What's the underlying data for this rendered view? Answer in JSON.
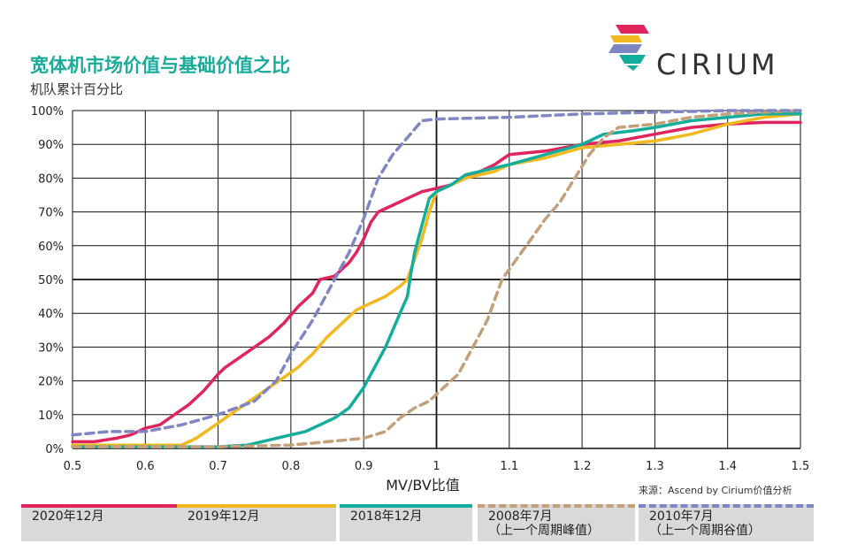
{
  "header": {
    "title": "宽体机市场价值与基础价值之比",
    "subtitle": "机队累计百分比",
    "brand": "CIRIUM"
  },
  "source": "来源：Ascend by Cirium价值分析",
  "legend": [
    {
      "label": "2020年12月",
      "sub": "",
      "color": "#e0245e",
      "dashed": false
    },
    {
      "label": "2019年12月",
      "sub": "",
      "color": "#f2b81f",
      "dashed": false
    },
    {
      "label": "2018年12月",
      "sub": "",
      "color": "#14ad9c",
      "dashed": false
    },
    {
      "label": "2008年7月",
      "sub": "（上一个周期峰值）",
      "color": "#c4a07a",
      "dashed": true
    },
    {
      "label": "2010年7月",
      "sub": "（上一个周期谷值）",
      "color": "#7f86c4",
      "dashed": true
    }
  ],
  "chart_data": {
    "type": "line",
    "title": "宽体机市场价值与基础价值之比",
    "subtitle": "机队累计百分比",
    "xlabel": "MV/BV比值",
    "ylabel": "",
    "xlim": [
      0.5,
      1.5
    ],
    "ylim": [
      0,
      100
    ],
    "xticks": [
      "0.5",
      "0.6",
      "0.7",
      "0.8",
      "0.9",
      "1",
      "1.1",
      "1.2",
      "1.3",
      "1.4",
      "1.5"
    ],
    "yticks": [
      "0%",
      "10%",
      "20%",
      "30%",
      "40%",
      "50%",
      "60%",
      "70%",
      "80%",
      "90%",
      "100%"
    ],
    "grid": true,
    "series": [
      {
        "name": "2020年12月",
        "color": "#e0245e",
        "dashed": false,
        "points": [
          [
            0.5,
            2
          ],
          [
            0.53,
            2
          ],
          [
            0.56,
            3
          ],
          [
            0.58,
            4
          ],
          [
            0.6,
            6
          ],
          [
            0.62,
            7
          ],
          [
            0.64,
            10
          ],
          [
            0.66,
            13
          ],
          [
            0.68,
            17
          ],
          [
            0.7,
            22
          ],
          [
            0.71,
            24
          ],
          [
            0.73,
            27
          ],
          [
            0.75,
            30
          ],
          [
            0.77,
            33
          ],
          [
            0.79,
            37
          ],
          [
            0.81,
            42
          ],
          [
            0.83,
            46
          ],
          [
            0.84,
            50
          ],
          [
            0.86,
            51
          ],
          [
            0.87,
            53
          ],
          [
            0.88,
            55
          ],
          [
            0.89,
            58
          ],
          [
            0.9,
            62
          ],
          [
            0.91,
            67
          ],
          [
            0.92,
            70
          ],
          [
            0.94,
            72
          ],
          [
            0.96,
            74
          ],
          [
            0.98,
            76
          ],
          [
            1.0,
            77
          ],
          [
            1.02,
            78
          ],
          [
            1.04,
            80
          ],
          [
            1.06,
            82
          ],
          [
            1.08,
            84
          ],
          [
            1.1,
            87
          ],
          [
            1.15,
            88
          ],
          [
            1.2,
            90
          ],
          [
            1.25,
            91
          ],
          [
            1.3,
            93
          ],
          [
            1.35,
            95
          ],
          [
            1.4,
            96
          ],
          [
            1.45,
            96.5
          ],
          [
            1.5,
            96.5
          ]
        ]
      },
      {
        "name": "2019年12月",
        "color": "#f2b81f",
        "dashed": false,
        "points": [
          [
            0.5,
            1
          ],
          [
            0.6,
            1
          ],
          [
            0.65,
            1
          ],
          [
            0.67,
            3
          ],
          [
            0.69,
            6
          ],
          [
            0.71,
            9
          ],
          [
            0.73,
            12
          ],
          [
            0.75,
            15
          ],
          [
            0.77,
            18
          ],
          [
            0.79,
            21
          ],
          [
            0.81,
            24
          ],
          [
            0.83,
            28
          ],
          [
            0.85,
            33
          ],
          [
            0.87,
            37
          ],
          [
            0.89,
            41
          ],
          [
            0.91,
            43
          ],
          [
            0.93,
            45
          ],
          [
            0.95,
            48
          ],
          [
            0.96,
            50
          ],
          [
            0.97,
            56
          ],
          [
            0.98,
            62
          ],
          [
            0.99,
            70
          ],
          [
            1.0,
            76
          ],
          [
            1.02,
            78
          ],
          [
            1.04,
            80
          ],
          [
            1.06,
            81
          ],
          [
            1.08,
            82
          ],
          [
            1.1,
            84
          ],
          [
            1.15,
            86
          ],
          [
            1.2,
            89
          ],
          [
            1.25,
            90
          ],
          [
            1.3,
            91
          ],
          [
            1.35,
            93
          ],
          [
            1.4,
            96
          ],
          [
            1.45,
            98
          ],
          [
            1.5,
            99
          ]
        ]
      },
      {
        "name": "2018年12月",
        "color": "#14ad9c",
        "dashed": false,
        "points": [
          [
            0.5,
            0.5
          ],
          [
            0.6,
            0.5
          ],
          [
            0.7,
            0.5
          ],
          [
            0.74,
            1
          ],
          [
            0.76,
            2
          ],
          [
            0.78,
            3
          ],
          [
            0.8,
            4
          ],
          [
            0.82,
            5
          ],
          [
            0.84,
            7
          ],
          [
            0.86,
            9
          ],
          [
            0.88,
            12
          ],
          [
            0.9,
            18
          ],
          [
            0.91,
            22
          ],
          [
            0.93,
            30
          ],
          [
            0.94,
            35
          ],
          [
            0.95,
            40
          ],
          [
            0.96,
            45
          ],
          [
            0.965,
            52
          ],
          [
            0.97,
            58
          ],
          [
            0.98,
            66
          ],
          [
            0.99,
            74
          ],
          [
            1.0,
            76
          ],
          [
            1.02,
            78
          ],
          [
            1.04,
            81
          ],
          [
            1.06,
            82
          ],
          [
            1.08,
            83
          ],
          [
            1.1,
            84
          ],
          [
            1.15,
            87
          ],
          [
            1.2,
            90
          ],
          [
            1.23,
            93
          ],
          [
            1.27,
            94
          ],
          [
            1.3,
            95
          ],
          [
            1.35,
            97
          ],
          [
            1.4,
            98
          ],
          [
            1.45,
            99
          ],
          [
            1.5,
            99
          ]
        ]
      },
      {
        "name": "2008年7月（上一个周期峰值）",
        "color": "#c4a07a",
        "dashed": true,
        "points": [
          [
            0.5,
            0.5
          ],
          [
            0.7,
            0.5
          ],
          [
            0.8,
            1
          ],
          [
            0.85,
            2
          ],
          [
            0.9,
            3
          ],
          [
            0.93,
            5
          ],
          [
            0.95,
            9
          ],
          [
            0.97,
            12
          ],
          [
            0.99,
            14
          ],
          [
            1.01,
            18
          ],
          [
            1.03,
            22
          ],
          [
            1.05,
            30
          ],
          [
            1.07,
            38
          ],
          [
            1.09,
            50
          ],
          [
            1.11,
            56
          ],
          [
            1.13,
            62
          ],
          [
            1.15,
            68
          ],
          [
            1.17,
            73
          ],
          [
            1.19,
            80
          ],
          [
            1.21,
            87
          ],
          [
            1.23,
            92
          ],
          [
            1.25,
            95
          ],
          [
            1.3,
            96
          ],
          [
            1.35,
            98
          ],
          [
            1.4,
            99
          ],
          [
            1.5,
            100
          ]
        ]
      },
      {
        "name": "2010年7月（上一个周期谷值）",
        "color": "#7f86c4",
        "dashed": true,
        "points": [
          [
            0.5,
            4
          ],
          [
            0.55,
            5
          ],
          [
            0.6,
            5
          ],
          [
            0.65,
            7
          ],
          [
            0.7,
            10
          ],
          [
            0.75,
            14
          ],
          [
            0.78,
            20
          ],
          [
            0.8,
            28
          ],
          [
            0.83,
            38
          ],
          [
            0.86,
            50
          ],
          [
            0.88,
            58
          ],
          [
            0.9,
            68
          ],
          [
            0.92,
            80
          ],
          [
            0.94,
            87
          ],
          [
            0.96,
            92
          ],
          [
            0.98,
            97
          ],
          [
            1.0,
            97.5
          ],
          [
            1.1,
            98
          ],
          [
            1.2,
            99
          ],
          [
            1.3,
            99.5
          ],
          [
            1.4,
            100
          ],
          [
            1.5,
            100
          ]
        ]
      }
    ]
  }
}
